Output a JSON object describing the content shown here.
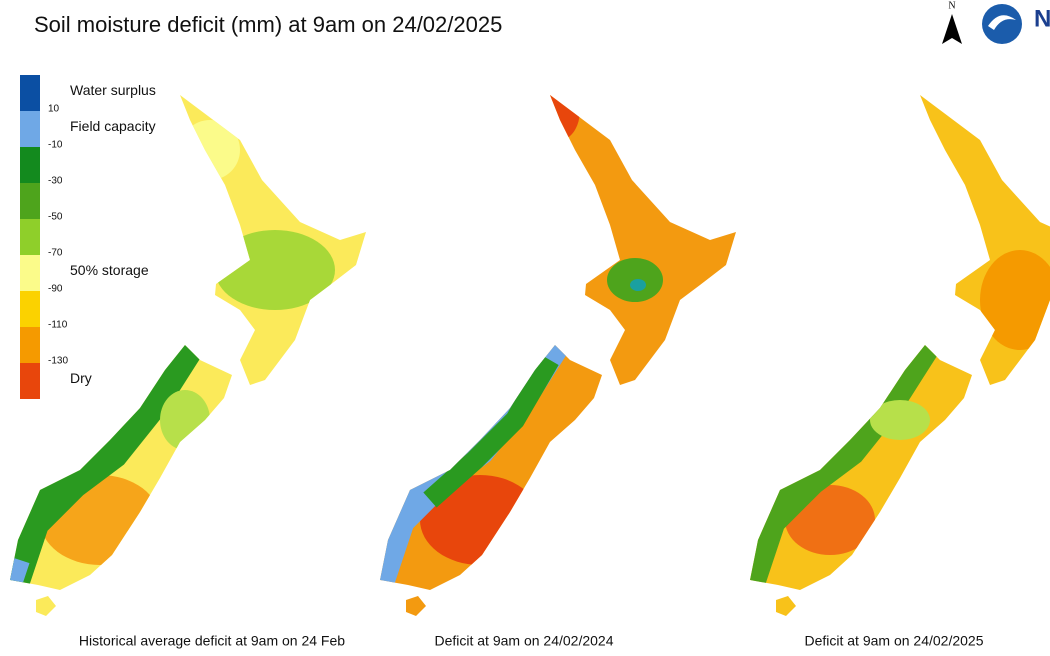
{
  "header": {
    "title": "Soil moisture deficit (mm) at  9am on 24/02/2025",
    "north": "N",
    "logo": "N"
  },
  "legend": {
    "colors": [
      "#0b4fa3",
      "#6fa8e6",
      "#138a1e",
      "#4ea41c",
      "#8fcf2a",
      "#fbfb8a",
      "#fbd200",
      "#f59a00",
      "#e8460c"
    ],
    "ticks": [
      "10",
      "-10",
      "-30",
      "-50",
      "-70",
      "-90",
      "-110",
      "-130"
    ],
    "labels": [
      {
        "text": "Water surplus",
        "band": 0
      },
      {
        "text": "Field capacity",
        "band": 1
      },
      {
        "text": "50% storage",
        "band": 5
      },
      {
        "text": "Dry",
        "band": 8
      }
    ]
  },
  "maps": [
    {
      "caption": "Historical average deficit at  9am on 24 Feb"
    },
    {
      "caption": "Deficit at  9am on 24/02/2024"
    },
    {
      "caption": "Deficit at  9am on 24/02/2025"
    }
  ]
}
